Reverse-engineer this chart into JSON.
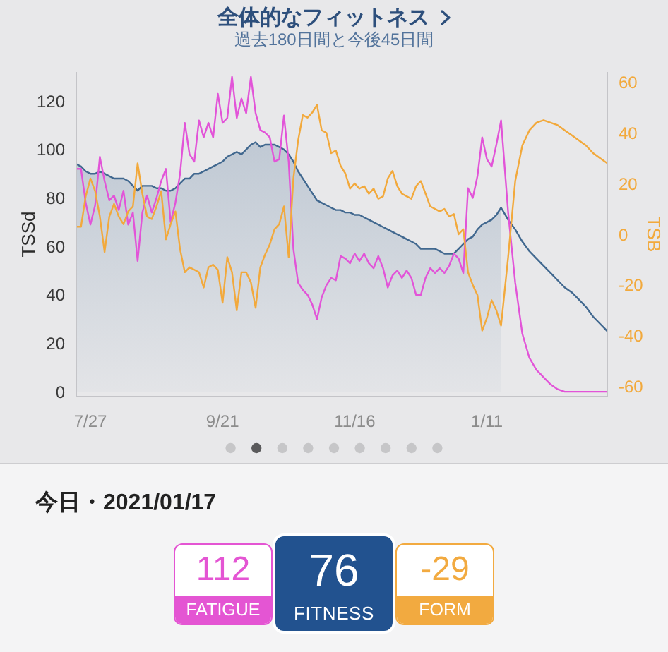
{
  "chart_data": [
    {
      "type": "line",
      "title": "全体的なフィットネス",
      "subtitle": "過去180日間と今後45日間",
      "ylabel": "TSSd",
      "y2label": "TSB",
      "x": [
        "2020-07-21",
        "2020-07-23",
        "2020-07-25",
        "2020-07-27",
        "2020-07-29",
        "2020-07-31",
        "2020-08-02",
        "2020-08-04",
        "2020-08-06",
        "2020-08-08",
        "2020-08-10",
        "2020-08-12",
        "2020-08-14",
        "2020-08-16",
        "2020-08-18",
        "2020-08-20",
        "2020-08-22",
        "2020-08-24",
        "2020-08-26",
        "2020-08-28",
        "2020-08-30",
        "2020-09-01",
        "2020-09-03",
        "2020-09-05",
        "2020-09-07",
        "2020-09-09",
        "2020-09-11",
        "2020-09-13",
        "2020-09-15",
        "2020-09-17",
        "2020-09-19",
        "2020-09-21",
        "2020-09-23",
        "2020-09-25",
        "2020-09-27",
        "2020-09-29",
        "2020-10-01",
        "2020-10-03",
        "2020-10-05",
        "2020-10-07",
        "2020-10-09",
        "2020-10-11",
        "2020-10-13",
        "2020-10-15",
        "2020-10-17",
        "2020-10-19",
        "2020-10-21",
        "2020-10-23",
        "2020-10-25",
        "2020-10-27",
        "2020-10-29",
        "2020-10-31",
        "2020-11-02",
        "2020-11-04",
        "2020-11-06",
        "2020-11-08",
        "2020-11-10",
        "2020-11-12",
        "2020-11-14",
        "2020-11-16",
        "2020-11-18",
        "2020-11-20",
        "2020-11-22",
        "2020-11-24",
        "2020-11-26",
        "2020-11-28",
        "2020-11-30",
        "2020-12-02",
        "2020-12-04",
        "2020-12-06",
        "2020-12-08",
        "2020-12-10",
        "2020-12-12",
        "2020-12-14",
        "2020-12-16",
        "2020-12-18",
        "2020-12-20",
        "2020-12-22",
        "2020-12-24",
        "2020-12-26",
        "2020-12-28",
        "2020-12-30",
        "2021-01-01",
        "2021-01-03",
        "2021-01-05",
        "2021-01-07",
        "2021-01-09",
        "2021-01-11",
        "2021-01-13",
        "2021-01-15",
        "2021-01-17",
        "2021-01-20",
        "2021-01-23",
        "2021-01-26",
        "2021-01-29",
        "2021-02-01",
        "2021-02-04",
        "2021-02-07",
        "2021-02-10",
        "2021-02-13",
        "2021-02-16",
        "2021-02-19",
        "2021-02-22",
        "2021-02-25",
        "2021-02-28",
        "2021-03-03"
      ],
      "xlim": [
        "2020-07-21",
        "2021-03-03"
      ],
      "xticks": [
        {
          "value": "2020-07-27",
          "label": "7/27"
        },
        {
          "value": "2020-09-21",
          "label": "9/21"
        },
        {
          "value": "2020-11-16",
          "label": "11/16"
        },
        {
          "value": "2021-01-11",
          "label": "1/11"
        }
      ],
      "ylim": [
        -2,
        132
      ],
      "yticks": [
        0,
        20,
        40,
        60,
        80,
        100,
        120
      ],
      "y2lim": [
        -64,
        64
      ],
      "y2ticks": [
        -60,
        -40,
        -20,
        0,
        20,
        40,
        60
      ],
      "series": [
        {
          "type": "area",
          "color": "#41688f",
          "values": [
            94,
            93,
            91,
            90,
            90,
            91,
            90,
            89,
            88,
            88,
            88,
            87,
            85,
            83,
            85,
            85,
            85,
            84,
            84,
            83,
            83,
            84,
            86,
            88,
            88,
            90,
            90,
            91,
            92,
            93,
            94,
            95,
            97,
            98,
            99,
            98,
            100,
            102,
            103,
            101,
            102,
            102,
            102,
            101,
            100,
            98,
            95,
            91,
            88,
            85,
            82,
            79,
            78,
            77,
            76,
            75,
            75,
            74,
            74,
            73,
            73,
            72,
            71,
            70,
            69,
            68,
            67,
            66,
            65,
            64,
            63,
            62,
            61,
            59,
            59,
            59,
            59,
            58,
            57,
            57,
            57,
            59,
            61,
            63,
            64,
            67,
            69,
            70,
            71,
            73,
            76,
            null,
            null,
            null,
            null,
            null,
            null,
            null,
            null,
            null,
            null,
            null,
            null,
            null,
            null,
            null
          ]
        },
        {
          "type": "line",
          "color": "#41688f",
          "values": [
            null,
            null,
            null,
            null,
            null,
            null,
            null,
            null,
            null,
            null,
            null,
            null,
            null,
            null,
            null,
            null,
            null,
            null,
            null,
            null,
            null,
            null,
            null,
            null,
            null,
            null,
            null,
            null,
            null,
            null,
            null,
            null,
            null,
            null,
            null,
            null,
            null,
            null,
            null,
            null,
            null,
            null,
            null,
            null,
            null,
            null,
            null,
            null,
            null,
            null,
            null,
            null,
            null,
            null,
            null,
            null,
            null,
            null,
            null,
            null,
            null,
            null,
            null,
            null,
            null,
            null,
            null,
            null,
            null,
            null,
            null,
            null,
            null,
            null,
            null,
            null,
            null,
            null,
            null,
            null,
            null,
            null,
            null,
            null,
            null,
            null,
            null,
            null,
            null,
            null,
            76,
            71,
            67,
            62,
            58,
            55,
            52,
            49,
            46,
            43,
            41,
            38,
            35,
            31,
            28,
            25
          ]
        },
        {
          "type": "line",
          "color": "#e254d8",
          "values": [
            92,
            92,
            78,
            69,
            77,
            97,
            87,
            79,
            81,
            75,
            83,
            69,
            74,
            54,
            74,
            81,
            74,
            80,
            87,
            92,
            70,
            78,
            90,
            111,
            98,
            95,
            112,
            105,
            111,
            105,
            123,
            111,
            113,
            130,
            113,
            121,
            115,
            130,
            115,
            108,
            107,
            105,
            95,
            96,
            114,
            95,
            59,
            45,
            42,
            40,
            36,
            30,
            39,
            44,
            47,
            46,
            56,
            55,
            53,
            57,
            54,
            57,
            53,
            51,
            56,
            51,
            43,
            48,
            50,
            47,
            50,
            47,
            40,
            40,
            47,
            51,
            49,
            51,
            49,
            52,
            57,
            55,
            49,
            84,
            80,
            89,
            105,
            96,
            93,
            102,
            112,
            74,
            45,
            24,
            14,
            9,
            6,
            3,
            1,
            0,
            0,
            0,
            0,
            0,
            0,
            0
          ]
        },
        {
          "type": "line",
          "axis": "y2",
          "color": "#f2a93c",
          "values": [
            3,
            3,
            15,
            22,
            17,
            7,
            -7,
            7,
            12,
            7,
            4,
            9,
            11,
            28,
            16,
            7,
            6,
            11,
            17,
            -2,
            4,
            9,
            -6,
            -15,
            -13,
            -14,
            -15,
            -21,
            -13,
            -12,
            -14,
            -27,
            -9,
            -15,
            -30,
            -15,
            -15,
            -19,
            -29,
            -13,
            -8,
            -4,
            2,
            4,
            11,
            -9,
            22,
            37,
            47,
            46,
            48,
            51,
            41,
            40,
            32,
            33,
            27,
            24,
            18,
            20,
            18,
            19,
            16,
            18,
            14,
            15,
            22,
            25,
            19,
            16,
            15,
            14,
            19,
            21,
            16,
            11,
            10,
            9,
            10,
            7,
            8,
            0,
            2,
            -15,
            -20,
            -24,
            -38,
            -33,
            -26,
            -30,
            -36,
            -9,
            21,
            35,
            41,
            44,
            45,
            44,
            43,
            41,
            39,
            37,
            35,
            32,
            30,
            28
          ]
        }
      ]
    },
    {
      "type": "other",
      "title": "今日・2021/01/17",
      "categories": [
        "FATIGUE",
        "FITNESS",
        "FORM"
      ],
      "values": [
        112,
        76,
        -29
      ],
      "colors": [
        "#e455d3",
        "#22528f",
        "#f2aa40"
      ],
      "data_labels": true
    }
  ]
}
